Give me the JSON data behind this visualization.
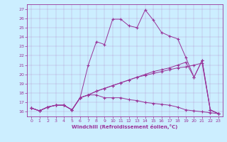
{
  "xlabel": "Windchill (Refroidissement éolien,°C)",
  "bg_color": "#cceeff",
  "line_color": "#993399",
  "xlim": [
    -0.5,
    23.5
  ],
  "ylim": [
    15.5,
    27.5
  ],
  "xticks": [
    0,
    1,
    2,
    3,
    4,
    5,
    6,
    7,
    8,
    9,
    10,
    11,
    12,
    13,
    14,
    15,
    16,
    17,
    18,
    19,
    20,
    21,
    22,
    23
  ],
  "yticks": [
    16,
    17,
    18,
    19,
    20,
    21,
    22,
    23,
    24,
    25,
    26,
    27
  ],
  "series": [
    [
      16.4,
      16.1,
      16.5,
      16.7,
      16.7,
      16.2,
      17.5,
      21.0,
      23.5,
      23.2,
      25.9,
      25.9,
      25.2,
      25.0,
      26.9,
      25.8,
      24.5,
      24.1,
      23.8,
      21.8,
      19.7,
      21.5,
      16.2,
      15.8
    ],
    [
      16.4,
      16.1,
      16.5,
      16.7,
      16.7,
      16.2,
      17.5,
      17.8,
      17.8,
      17.5,
      17.5,
      17.5,
      17.3,
      17.2,
      17.0,
      16.9,
      16.8,
      16.7,
      16.5,
      16.2,
      16.1,
      16.0,
      15.9,
      15.8
    ],
    [
      16.4,
      16.1,
      16.5,
      16.7,
      16.7,
      16.2,
      17.5,
      17.8,
      18.2,
      18.5,
      18.8,
      19.1,
      19.4,
      19.7,
      20.0,
      20.3,
      20.5,
      20.7,
      21.0,
      21.3,
      19.7,
      21.5,
      16.2,
      15.8
    ],
    [
      16.4,
      16.1,
      16.5,
      16.7,
      16.7,
      16.2,
      17.5,
      17.8,
      18.2,
      18.5,
      18.8,
      19.1,
      19.4,
      19.7,
      19.9,
      20.1,
      20.3,
      20.5,
      20.7,
      20.8,
      21.0,
      21.2,
      16.2,
      15.8
    ]
  ]
}
